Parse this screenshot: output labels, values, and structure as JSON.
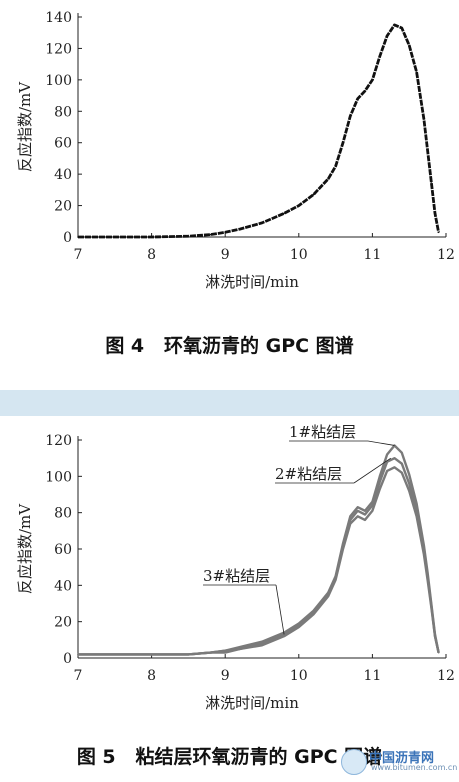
{
  "chart_data": [
    {
      "type": "line",
      "caption": "图 4   环氧沥青的 GPC 图谱",
      "xlabel": "淋洗时间/min",
      "ylabel": "反应指数/mV",
      "xlim": [
        7,
        12
      ],
      "ylim": [
        0,
        140
      ],
      "xticks": [
        7,
        8,
        9,
        10,
        11,
        12
      ],
      "yticks": [
        0,
        20,
        40,
        60,
        80,
        100,
        120,
        140
      ],
      "grid": false,
      "series": [
        {
          "x": [
            7.0,
            7.5,
            8.0,
            8.5,
            8.8,
            9.0,
            9.2,
            9.5,
            9.8,
            10.0,
            10.2,
            10.4,
            10.5,
            10.6,
            10.7,
            10.8,
            10.9,
            11.0,
            11.1,
            11.2,
            11.3,
            11.4,
            11.5,
            11.6,
            11.7,
            11.75,
            11.8,
            11.85,
            11.9
          ],
          "y": [
            0,
            0,
            0,
            0.5,
            1.5,
            3,
            5,
            9,
            15,
            20,
            27,
            37,
            45,
            60,
            77,
            88,
            93,
            100,
            115,
            128,
            135,
            133,
            122,
            105,
            75,
            55,
            35,
            15,
            3
          ],
          "color": "#111111"
        }
      ]
    },
    {
      "type": "line",
      "caption": "图 5   粘结层环氧沥青的 GPC 图谱",
      "xlabel": "淋洗时间/min",
      "ylabel": "反应指数/mV",
      "xlim": [
        7,
        12
      ],
      "ylim": [
        0,
        120
      ],
      "xticks": [
        7,
        8,
        9,
        10,
        11,
        12
      ],
      "yticks": [
        0,
        20,
        40,
        60,
        80,
        100,
        120
      ],
      "grid": false,
      "annotations": [
        "1#粘结层",
        "2#粘结层",
        "3#粘结层"
      ],
      "series": [
        {
          "x": [
            7.0,
            7.5,
            8.0,
            8.5,
            8.8,
            9.0,
            9.2,
            9.5,
            9.8,
            10.0,
            10.2,
            10.4,
            10.5,
            10.6,
            10.7,
            10.8,
            10.9,
            11.0,
            11.1,
            11.2,
            11.3,
            11.4,
            11.5,
            11.6,
            11.7,
            11.75,
            11.8,
            11.85,
            11.9
          ],
          "y": [
            2,
            2,
            2,
            2,
            3,
            4,
            6,
            9,
            14,
            19,
            26,
            36,
            45,
            63,
            78,
            83,
            81,
            86,
            100,
            112,
            117,
            113,
            101,
            85,
            62,
            47,
            30,
            13,
            3
          ],
          "color": "#7a7a7a"
        },
        {
          "x": [
            7.0,
            7.5,
            8.0,
            8.5,
            8.8,
            9.0,
            9.2,
            9.5,
            9.8,
            10.0,
            10.2,
            10.4,
            10.5,
            10.6,
            10.7,
            10.8,
            10.9,
            11.0,
            11.1,
            11.2,
            11.3,
            11.4,
            11.5,
            11.6,
            11.7,
            11.75,
            11.8,
            11.85,
            11.9
          ],
          "y": [
            2,
            2,
            2,
            2,
            3,
            4,
            5,
            8,
            13,
            18,
            25,
            35,
            44,
            62,
            76,
            81,
            79,
            84,
            97,
            108,
            110,
            107,
            96,
            81,
            59,
            45,
            29,
            12,
            3
          ],
          "color": "#7a7a7a"
        },
        {
          "x": [
            7.0,
            7.5,
            8.0,
            8.5,
            8.8,
            9.0,
            9.2,
            9.5,
            9.8,
            10.0,
            10.2,
            10.4,
            10.5,
            10.6,
            10.7,
            10.8,
            10.9,
            11.0,
            11.1,
            11.2,
            11.3,
            11.4,
            11.5,
            11.6,
            11.7,
            11.75,
            11.8,
            11.85,
            11.9
          ],
          "y": [
            2,
            2,
            2,
            2,
            3,
            3,
            5,
            7,
            12,
            17,
            24,
            34,
            43,
            60,
            74,
            78,
            76,
            81,
            93,
            103,
            105,
            102,
            92,
            78,
            57,
            43,
            28,
            12,
            3
          ],
          "color": "#7a7a7a"
        }
      ]
    }
  ],
  "watermark": {
    "title": "中国沥青网",
    "url": "www.bitumen.com.cn"
  }
}
